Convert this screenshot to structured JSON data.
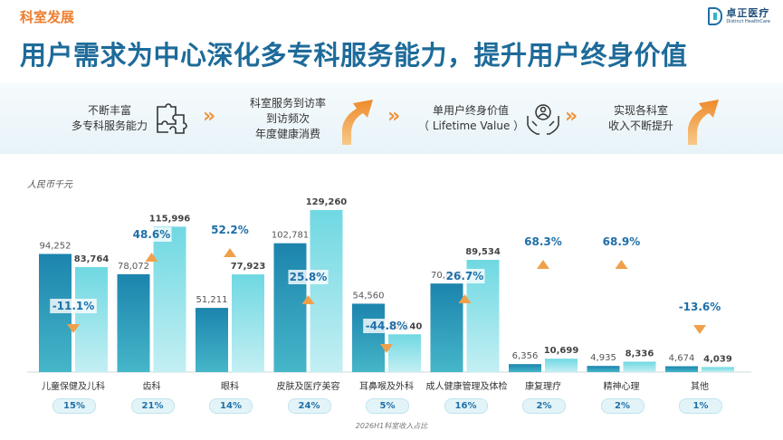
{
  "header": {
    "section_tag": "科室发展",
    "title": "用户需求为中心深化多专科服务能力，提升用户终身价值",
    "logo_cn": "卓正医疗",
    "logo_en": "Distinct HealthCare"
  },
  "flow": {
    "step1": [
      "不断丰富",
      "多专科服务能力"
    ],
    "step2": [
      "科室服务到访率",
      "到访频次",
      "年度健康消费"
    ],
    "step3": [
      "单用户终身价值",
      "（ Lifetime Value ）"
    ],
    "step4": [
      "实现各科室",
      "收入不断提升"
    ],
    "chevron": "»",
    "icons": [
      "puzzle-icon",
      "person-in-hands-icon",
      "up-arrow-icon"
    ]
  },
  "colors": {
    "dark_bar": "#2a97b8",
    "light_bar": "#7ddbe3",
    "title": "#1e6b9a",
    "accent": "#f0923b",
    "growth_text": "#1f6fa8"
  },
  "chart_data": {
    "type": "bar",
    "unit_label": "人民币千元",
    "categories": [
      "儿童保健及儿科",
      "齿科",
      "眼科",
      "皮肤及医疗美容",
      "耳鼻喉及外科",
      "成人健康管理及体检",
      "康复理疗",
      "精神心理",
      "其他"
    ],
    "series": [
      {
        "values": [
          94252,
          78072,
          51211,
          102781,
          54560,
          70645,
          6356,
          4935,
          4674
        ]
      },
      {
        "values": [
          83764,
          115996,
          77923,
          129260,
          30140,
          89534,
          10699,
          8336,
          4039
        ]
      }
    ],
    "value_labels_1": [
      "94,252",
      "78,072",
      "51,211",
      "102,781",
      "54,560",
      "70,645",
      "6,356",
      "4,935",
      "4,674"
    ],
    "value_labels_2": [
      "83,764",
      "115,996",
      "77,923",
      "129,260",
      "30,140",
      "89,534",
      "10,699",
      "8,336",
      "4,039"
    ],
    "growth": [
      "-11.1%",
      "48.6%",
      "52.2%",
      "25.8%",
      "-44.8%",
      "26.7%",
      "68.3%",
      "68.9%",
      "-13.6%"
    ],
    "revenue_share": [
      "15%",
      "21%",
      "14%",
      "24%",
      "5%",
      "16%",
      "2%",
      "2%",
      "1%"
    ],
    "share_caption": "2026H1科室收入占比",
    "ylim": [
      0,
      129260
    ]
  }
}
